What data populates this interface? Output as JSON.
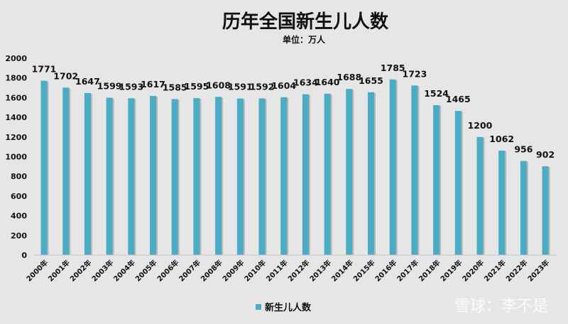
{
  "chart_data": {
    "type": "bar",
    "title": "历年全国新生儿人数",
    "subtitle": "单位：万人",
    "xlabel": "",
    "ylabel": "",
    "categories": [
      "2000年",
      "2001年",
      "2002年",
      "2003年",
      "2004年",
      "2005年",
      "2006年",
      "2007年",
      "2008年",
      "2009年",
      "2010年",
      "2011年",
      "2012年",
      "2013年",
      "2014年",
      "2015年",
      "2016年",
      "2017年",
      "2018年",
      "2019年",
      "2020年",
      "2021年",
      "2022年",
      "2023年"
    ],
    "series": [
      {
        "name": "新生儿人数",
        "values": [
          1771,
          1702,
          1647,
          1599,
          1593,
          1617,
          1585,
          1595,
          1608,
          1591,
          1592,
          1604,
          1634,
          1640,
          1688,
          1655,
          1785,
          1723,
          1524,
          1465,
          1200,
          1062,
          956,
          902
        ],
        "color": "#4bacc6"
      }
    ],
    "ylim": [
      0,
      2000
    ],
    "yticks": [
      0,
      200,
      400,
      600,
      800,
      1000,
      1200,
      1400,
      1600,
      1800,
      2000
    ],
    "grid": false,
    "legend": "bottom",
    "data_labels": true
  },
  "watermark": "雪球：李不是"
}
